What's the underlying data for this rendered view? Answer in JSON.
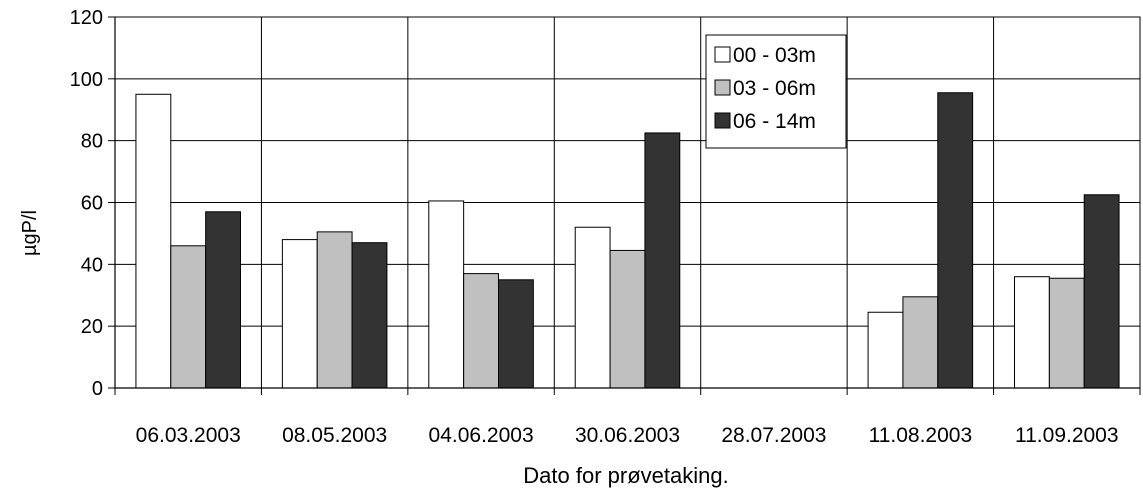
{
  "chart_data": {
    "type": "bar",
    "title": "",
    "xlabel": "Dato for prøvetaking.",
    "ylabel": "µgP/l",
    "ylim": [
      0,
      120
    ],
    "yticks": [
      0,
      20,
      40,
      60,
      80,
      100,
      120
    ],
    "grid": true,
    "legend_position": "top-right",
    "categories": [
      "06.03.2003",
      "08.05.2003",
      "04.06.2003",
      "30.06.2003",
      "28.07.2003",
      "11.08.2003",
      "11.09.2003"
    ],
    "series": [
      {
        "name": "00 - 03m",
        "color": "#ffffff",
        "values": [
          95,
          48,
          60.5,
          52,
          null,
          24.5,
          36
        ]
      },
      {
        "name": "03 - 06m",
        "color": "#c0c0c0",
        "values": [
          46,
          50.5,
          37,
          44.5,
          null,
          29.5,
          35.5
        ]
      },
      {
        "name": "06 - 14m",
        "color": "#333333",
        "values": [
          57,
          47,
          35,
          82.5,
          null,
          95.5,
          62.5
        ]
      }
    ]
  }
}
